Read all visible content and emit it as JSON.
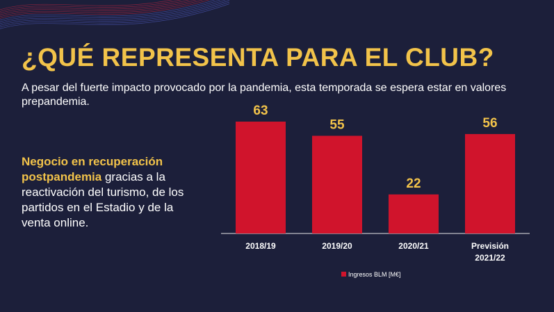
{
  "title": "¿QUÉ REPRESENTA PARA EL CLUB?",
  "subtitle": "A pesar del fuerte impacto provocado por la pandemia, esta temporada se espera estar en valores prepandemia.",
  "side_text": {
    "highlight": "Negocio en recuperación postpandemia",
    "rest": " gracias a la reactivación del turismo, de los partidos en el Estadio y de la venta online."
  },
  "colors": {
    "background": "#1c1f3a",
    "accent": "#f2c34a",
    "bar": "#d0142c"
  },
  "chart_data": {
    "type": "bar",
    "title": "",
    "categories": [
      [
        "2018/19"
      ],
      [
        "2019/20"
      ],
      [
        "2020/21"
      ],
      [
        "Previsión",
        "2021/22"
      ]
    ],
    "series": [
      {
        "name": "Ingresos BLM [M€]",
        "values": [
          63,
          55,
          22,
          56
        ]
      }
    ],
    "value_labels": [
      "63",
      "55",
      "22",
      "56"
    ],
    "ylim": [
      0,
      63
    ],
    "xlabel": "",
    "ylabel": "",
    "grid": false,
    "legend_position": "bottom-center"
  }
}
